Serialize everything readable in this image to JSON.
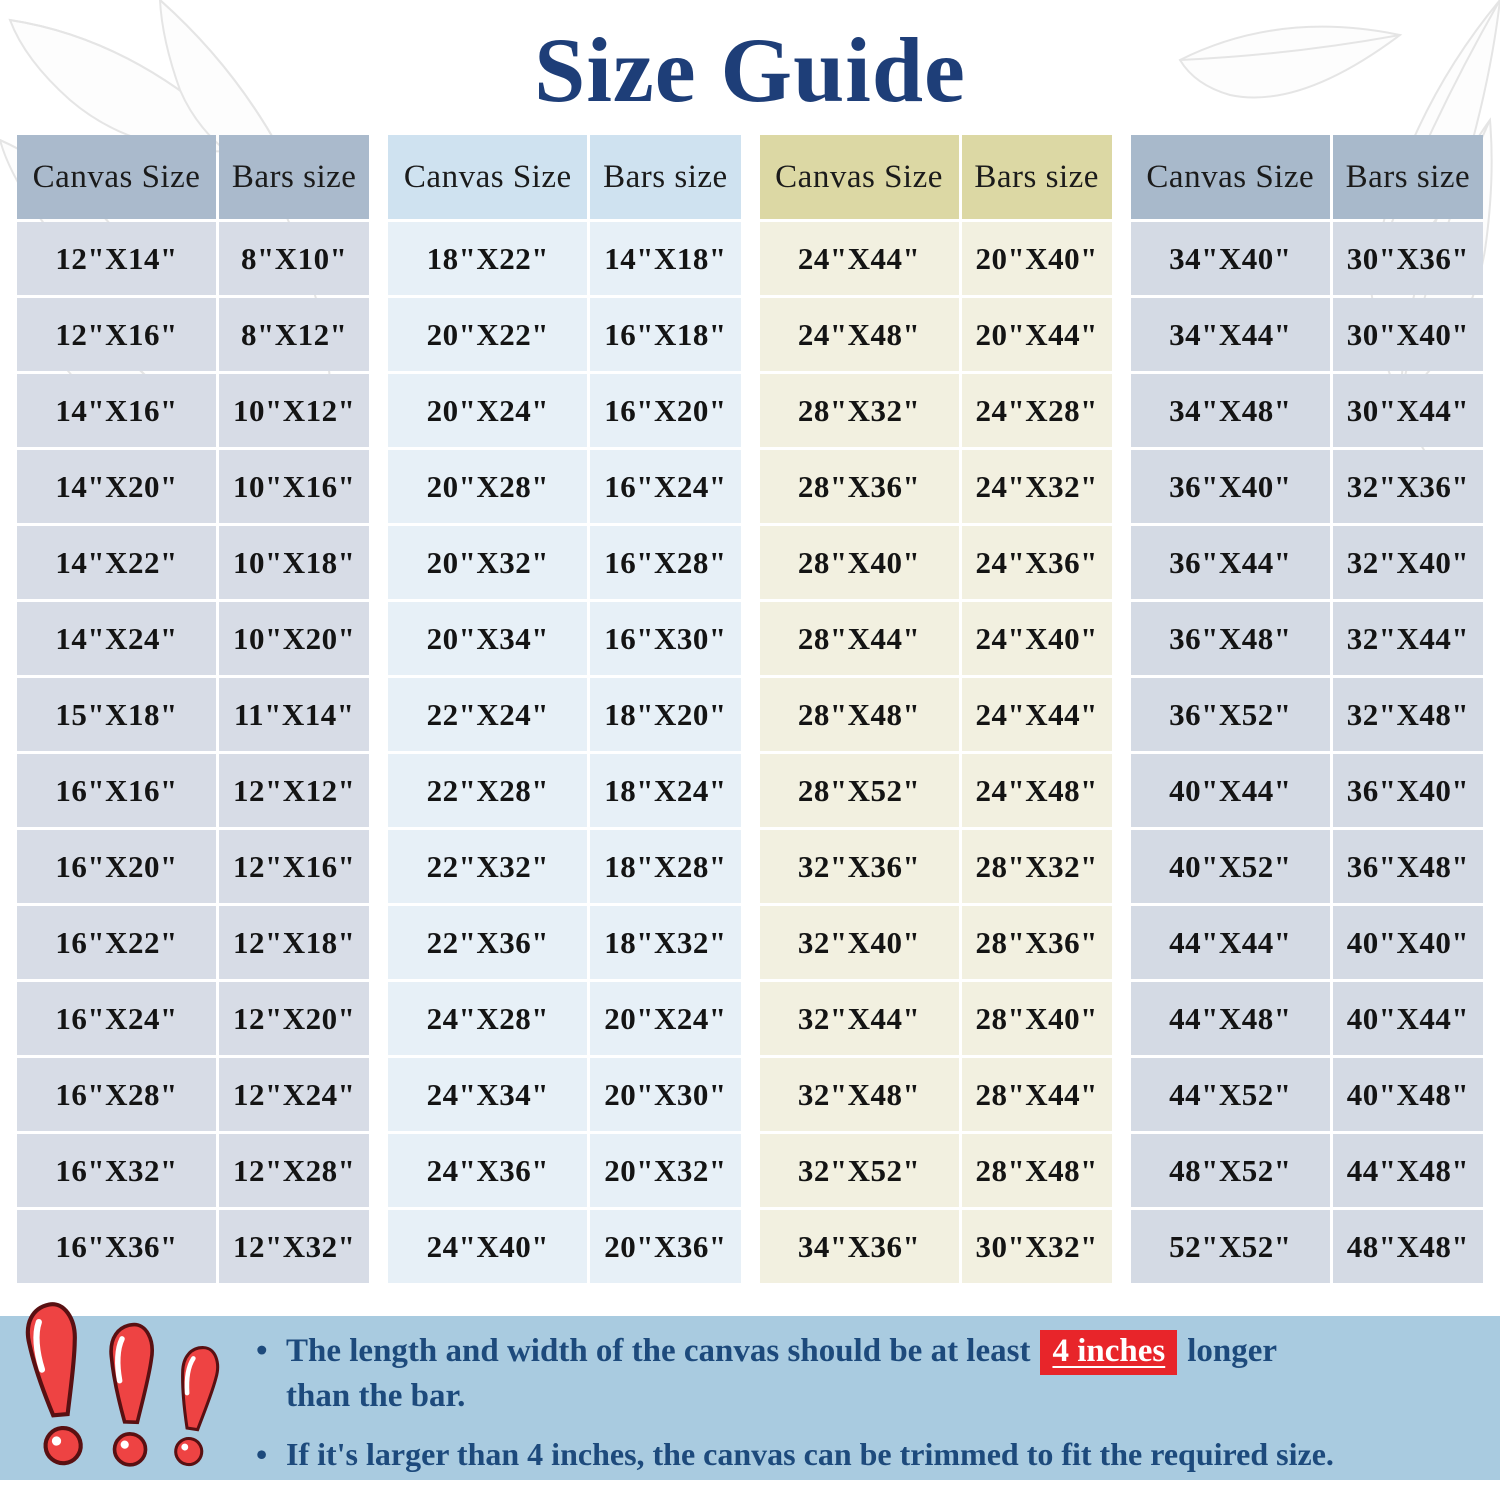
{
  "title": "Size Guide",
  "columns": {
    "canvas": "Canvas Size",
    "bars": "Bars size"
  },
  "tables": [
    {
      "rows": [
        [
          "12\"X14\"",
          "8\"X10\""
        ],
        [
          "12\"X16\"",
          "8\"X12\""
        ],
        [
          "14\"X16\"",
          "10\"X12\""
        ],
        [
          "14\"X20\"",
          "10\"X16\""
        ],
        [
          "14\"X22\"",
          "10\"X18\""
        ],
        [
          "14\"X24\"",
          "10\"X20\""
        ],
        [
          "15\"X18\"",
          "11\"X14\""
        ],
        [
          "16\"X16\"",
          "12\"X12\""
        ],
        [
          "16\"X20\"",
          "12\"X16\""
        ],
        [
          "16\"X22\"",
          "12\"X18\""
        ],
        [
          "16\"X24\"",
          "12\"X20\""
        ],
        [
          "16\"X28\"",
          "12\"X24\""
        ],
        [
          "16\"X32\"",
          "12\"X28\""
        ],
        [
          "16\"X36\"",
          "12\"X32\""
        ]
      ]
    },
    {
      "rows": [
        [
          "18\"X22\"",
          "14\"X18\""
        ],
        [
          "20\"X22\"",
          "16\"X18\""
        ],
        [
          "20\"X24\"",
          "16\"X20\""
        ],
        [
          "20\"X28\"",
          "16\"X24\""
        ],
        [
          "20\"X32\"",
          "16\"X28\""
        ],
        [
          "20\"X34\"",
          "16\"X30\""
        ],
        [
          "22\"X24\"",
          "18\"X20\""
        ],
        [
          "22\"X28\"",
          "18\"X24\""
        ],
        [
          "22\"X32\"",
          "18\"X28\""
        ],
        [
          "22\"X36\"",
          "18\"X32\""
        ],
        [
          "24\"X28\"",
          "20\"X24\""
        ],
        [
          "24\"X34\"",
          "20\"X30\""
        ],
        [
          "24\"X36\"",
          "20\"X32\""
        ],
        [
          "24\"X40\"",
          "20\"X36\""
        ]
      ]
    },
    {
      "rows": [
        [
          "24\"X44\"",
          "20\"X40\""
        ],
        [
          "24\"X48\"",
          "20\"X44\""
        ],
        [
          "28\"X32\"",
          "24\"X28\""
        ],
        [
          "28\"X36\"",
          "24\"X32\""
        ],
        [
          "28\"X40\"",
          "24\"X36\""
        ],
        [
          "28\"X44\"",
          "24\"X40\""
        ],
        [
          "28\"X48\"",
          "24\"X44\""
        ],
        [
          "28\"X52\"",
          "24\"X48\""
        ],
        [
          "32\"X36\"",
          "28\"X32\""
        ],
        [
          "32\"X40\"",
          "28\"X36\""
        ],
        [
          "32\"X44\"",
          "28\"X40\""
        ],
        [
          "32\"X48\"",
          "28\"X44\""
        ],
        [
          "32\"X52\"",
          "28\"X48\""
        ],
        [
          "34\"X36\"",
          "30\"X32\""
        ]
      ]
    },
    {
      "rows": [
        [
          "34\"X40\"",
          "30\"X36\""
        ],
        [
          "34\"X44\"",
          "30\"X40\""
        ],
        [
          "34\"X48\"",
          "30\"X44\""
        ],
        [
          "36\"X40\"",
          "32\"X36\""
        ],
        [
          "36\"X44\"",
          "32\"X40\""
        ],
        [
          "36\"X48\"",
          "32\"X44\""
        ],
        [
          "36\"X52\"",
          "32\"X48\""
        ],
        [
          "40\"X44\"",
          "36\"X40\""
        ],
        [
          "40\"X52\"",
          "36\"X48\""
        ],
        [
          "44\"X44\"",
          "40\"X40\""
        ],
        [
          "44\"X48\"",
          "40\"X44\""
        ],
        [
          "44\"X52\"",
          "40\"X48\""
        ],
        [
          "48\"X52\"",
          "44\"X48\""
        ],
        [
          "52\"X52\"",
          "48\"X48\""
        ]
      ]
    }
  ],
  "notes": [
    {
      "bullet": "•",
      "line1_prefix": "The length and width of the canvas should be at least",
      "highlight": "4 inches",
      "line1_suffix": "longer",
      "line2": "than the bar."
    },
    {
      "bullet": "•",
      "text": "If it's larger than 4 inches, the canvas can be trimmed to fit the required size."
    }
  ],
  "colors": {
    "title_text": "#1e3e78",
    "note_text": "#1d4a7c",
    "band_bg": "#a9cbe0",
    "highlight_red": "#e8252a",
    "highlight_text": "#ffffff",
    "cell_text": "#141414",
    "header_text": "#1b1b1b",
    "t1_head": "#aabacc",
    "t1_row": "#d7dce6",
    "t2_head": "#cfe2f0",
    "t2_row": "#e7f0f7",
    "t3_head": "#dcd8a4",
    "t3_row": "#f2f0e0",
    "t4_head": "#a8b9cb",
    "t4_row": "#d4dae4",
    "icon_red": "#ee4343"
  }
}
